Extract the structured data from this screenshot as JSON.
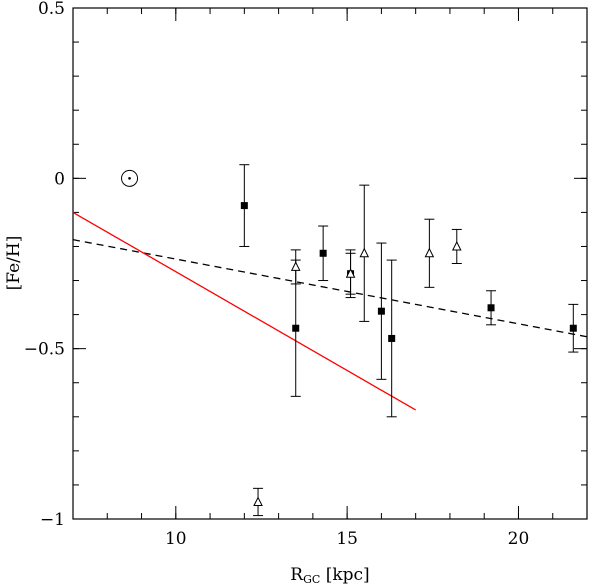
{
  "chart_data": {
    "type": "scatter",
    "xlabel": "R",
    "xlabel_sub": "GC",
    "xlabel_unit": "[kpc]",
    "ylabel": "[Fe/H]",
    "xlim": [
      7,
      22
    ],
    "ylim": [
      -1,
      0.5
    ],
    "x_ticks": [
      10,
      15,
      20
    ],
    "x_tick_labels": [
      "10",
      "15",
      "20"
    ],
    "y_ticks": [
      0.5,
      0,
      -0.5,
      -1
    ],
    "y_tick_labels": [
      "0.5",
      "0",
      "−0.5",
      "−1"
    ],
    "x_minor_step": 1,
    "y_minor_step": 0.1,
    "grid": false,
    "sun_marker": {
      "x": 8.65,
      "y": 0.0
    },
    "series": [
      {
        "marker": "filled-square",
        "color": "#000000",
        "points": [
          {
            "x": 12.0,
            "y": -0.08,
            "err": 0.12
          },
          {
            "x": 13.5,
            "y": -0.44,
            "err": 0.2
          },
          {
            "x": 14.3,
            "y": -0.22,
            "err": 0.08
          },
          {
            "x": 15.1,
            "y": -0.28,
            "err": 0.07
          },
          {
            "x": 16.0,
            "y": -0.39,
            "err": 0.2
          },
          {
            "x": 16.3,
            "y": -0.47,
            "err": 0.23
          },
          {
            "x": 19.2,
            "y": -0.38,
            "err": 0.05
          },
          {
            "x": 21.6,
            "y": -0.44,
            "err": 0.07
          }
        ]
      },
      {
        "marker": "open-triangle",
        "color": "#000000",
        "points": [
          {
            "x": 12.4,
            "y": -0.95,
            "err": 0.04
          },
          {
            "x": 13.5,
            "y": -0.26,
            "err": 0.05
          },
          {
            "x": 15.1,
            "y": -0.28,
            "err": 0.06
          },
          {
            "x": 15.5,
            "y": -0.22,
            "err": 0.2
          },
          {
            "x": 17.4,
            "y": -0.22,
            "err": 0.1
          },
          {
            "x": 18.2,
            "y": -0.2,
            "err": 0.05
          }
        ]
      }
    ],
    "lines": [
      {
        "style": "dashed",
        "color": "#000000",
        "x": [
          7,
          22
        ],
        "y": [
          -0.18,
          -0.465
        ]
      },
      {
        "style": "solid",
        "color": "#ff0000",
        "x": [
          7,
          17
        ],
        "y": [
          -0.1,
          -0.68
        ]
      }
    ]
  }
}
